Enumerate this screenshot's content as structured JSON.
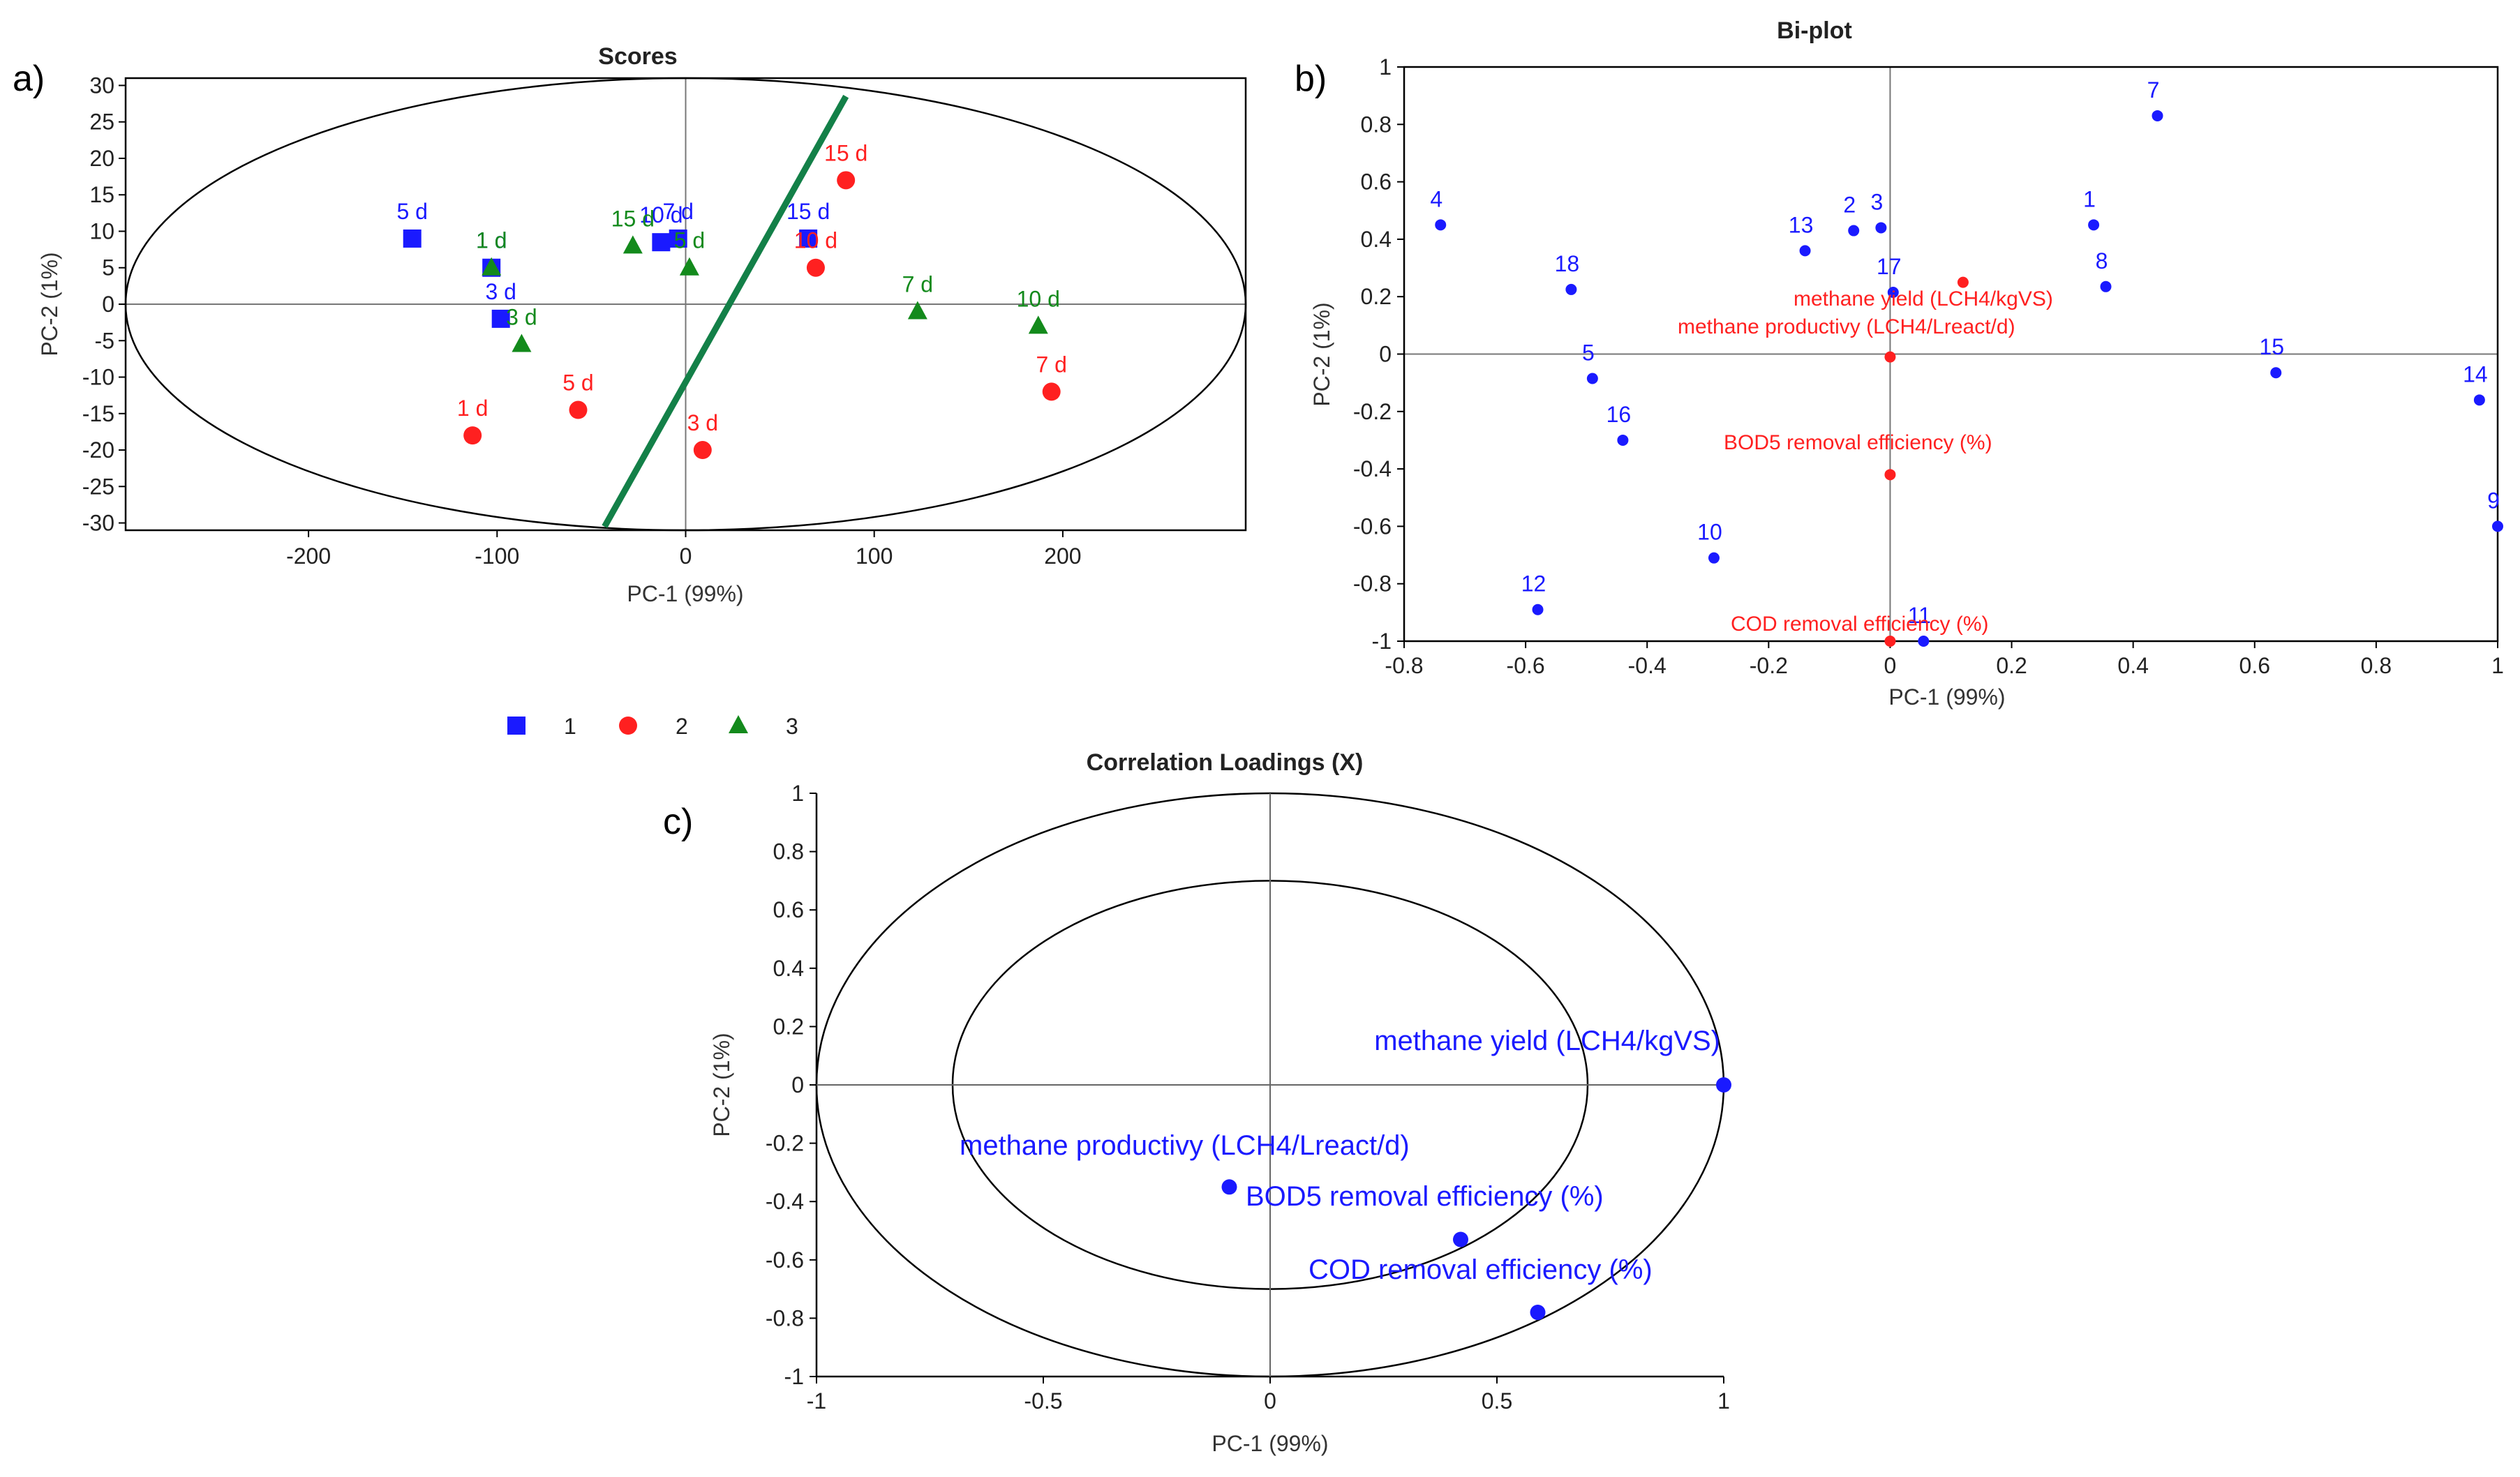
{
  "colors": {
    "blue": "#1a1aff",
    "red": "#ff2020",
    "green": "#138a1c",
    "divider": "#138048"
  },
  "panels": {
    "a": "a)",
    "b": "b)",
    "c": "c)"
  },
  "chart_data": [
    {
      "id": "scores",
      "type": "scatter",
      "title": "Scores",
      "xlabel": "PC-1 (99%)",
      "ylabel": "PC-2 (1%)",
      "xlim": [
        -297,
        297
      ],
      "ylim": [
        -31,
        31
      ],
      "xticks": [
        -200,
        -100,
        0,
        100,
        200
      ],
      "yticks": [
        30,
        25,
        20,
        15,
        10,
        5,
        0,
        -5,
        -10,
        -15,
        -20,
        -25,
        -30
      ],
      "legend": [
        {
          "label": "1",
          "marker": "square",
          "color": "#1a1aff"
        },
        {
          "label": "2",
          "marker": "circle",
          "color": "#ff2020"
        },
        {
          "label": "3",
          "marker": "triangle",
          "color": "#138a1c"
        }
      ],
      "series": [
        {
          "name": "1",
          "marker": "square",
          "color": "#1a1aff",
          "points": [
            {
              "x": -145,
              "y": 9,
              "label": "5 d"
            },
            {
              "x": -103,
              "y": 5,
              "label": "1 d"
            },
            {
              "x": -98,
              "y": -2,
              "label": "3 d"
            },
            {
              "x": -13,
              "y": 8.5,
              "label": "10 d"
            },
            {
              "x": -4,
              "y": 9,
              "label": "7 d"
            },
            {
              "x": 65,
              "y": 9,
              "label": "15 d"
            }
          ]
        },
        {
          "name": "2",
          "marker": "circle",
          "color": "#ff2020",
          "points": [
            {
              "x": 85,
              "y": 17,
              "label": "15 d"
            },
            {
              "x": 69,
              "y": 5,
              "label": "10 d"
            },
            {
              "x": -57,
              "y": -14.5,
              "label": "5 d"
            },
            {
              "x": -113,
              "y": -18,
              "label": "1 d"
            },
            {
              "x": 9,
              "y": -20,
              "label": "3 d"
            },
            {
              "x": 194,
              "y": -12,
              "label": "7 d"
            }
          ]
        },
        {
          "name": "3",
          "marker": "triangle",
          "color": "#138a1c",
          "points": [
            {
              "x": -103,
              "y": 5,
              "label": "1 d"
            },
            {
              "x": -28,
              "y": 8,
              "label": "15 d"
            },
            {
              "x": 2,
              "y": 5,
              "label": "5 d"
            },
            {
              "x": -87,
              "y": -5.5,
              "label": "3 d"
            },
            {
              "x": 123,
              "y": -1,
              "label": "7 d"
            },
            {
              "x": 187,
              "y": -3,
              "label": "10 d"
            }
          ]
        }
      ],
      "divider_line": [
        [
          -43,
          -30.5
        ],
        [
          85,
          28.5
        ]
      ]
    },
    {
      "id": "biplot",
      "type": "scatter",
      "title": "Bi-plot",
      "xlabel": "PC-1 (99%)",
      "ylabel": "PC-2 (1%)",
      "xlim": [
        -0.8,
        1
      ],
      "ylim": [
        -1,
        1
      ],
      "xticks": [
        "-0.8",
        "-0.6",
        "-0.4",
        "-0.2",
        "0",
        "0.2",
        "0.4",
        "0.6",
        "0.8",
        "1"
      ],
      "yticks": [
        "1",
        "0.8",
        "0.6",
        "0.4",
        "0.2",
        "0",
        "-0.2",
        "-0.4",
        "-0.6",
        "-0.8",
        "-1"
      ],
      "samples": [
        {
          "label": "1",
          "x": 0.335,
          "y": 0.45
        },
        {
          "label": "2",
          "x": -0.06,
          "y": 0.43
        },
        {
          "label": "3",
          "x": -0.015,
          "y": 0.44
        },
        {
          "label": "4",
          "x": -0.74,
          "y": 0.45
        },
        {
          "label": "5",
          "x": -0.49,
          "y": -0.085
        },
        {
          "label": "7",
          "x": 0.44,
          "y": 0.83
        },
        {
          "label": "8",
          "x": 0.355,
          "y": 0.235
        },
        {
          "label": "9",
          "x": 1.0,
          "y": -0.6
        },
        {
          "label": "10",
          "x": -0.29,
          "y": -0.71
        },
        {
          "label": "11",
          "x": 0.055,
          "y": -1.0
        },
        {
          "label": "12",
          "x": -0.58,
          "y": -0.89
        },
        {
          "label": "13",
          "x": -0.14,
          "y": 0.36
        },
        {
          "label": "14",
          "x": 0.97,
          "y": -0.16
        },
        {
          "label": "15",
          "x": 0.635,
          "y": -0.065
        },
        {
          "label": "16",
          "x": -0.44,
          "y": -0.3
        },
        {
          "label": "17",
          "x": 0.005,
          "y": 0.215
        },
        {
          "label": "18",
          "x": -0.525,
          "y": 0.225
        }
      ],
      "variables": [
        {
          "label": "methane yield (LCH4/kgVS)",
          "x": 0.12,
          "y": 0.25
        },
        {
          "label": "methane productivy (LCH4/Lreact/d)",
          "x": 0.0,
          "y": -0.01
        },
        {
          "label": "BOD5 removal efficiency (%)",
          "x": 0.0,
          "y": -0.42
        },
        {
          "label": "COD removal efficiency (%)",
          "x": 0.0,
          "y": -1.0
        }
      ]
    },
    {
      "id": "correlation-loadings",
      "type": "scatter",
      "title": "Correlation Loadings (X)",
      "xlabel": "PC-1 (99%)",
      "ylabel": "PC-2 (1%)",
      "xlim": [
        -1,
        1
      ],
      "ylim": [
        -1,
        1
      ],
      "xticks": [
        "-1",
        "-0.5",
        "0",
        "0.5",
        "1"
      ],
      "yticks": [
        "1",
        "0.8",
        "0.6",
        "0.4",
        "0.2",
        "0",
        "-0.2",
        "-0.4",
        "-0.6",
        "-0.8",
        "-1"
      ],
      "circles": [
        1.0,
        0.7
      ],
      "points": [
        {
          "label": "methane yield (LCH4/kgVS)",
          "x": 1.0,
          "y": 0.0
        },
        {
          "label": "methane productivy (LCH4/Lreact/d)",
          "x": -0.09,
          "y": -0.35
        },
        {
          "label": "BOD5 removal efficiency (%)",
          "x": 0.42,
          "y": -0.53
        },
        {
          "label": "COD removal efficiency (%)",
          "x": 0.59,
          "y": -0.78
        }
      ]
    }
  ]
}
